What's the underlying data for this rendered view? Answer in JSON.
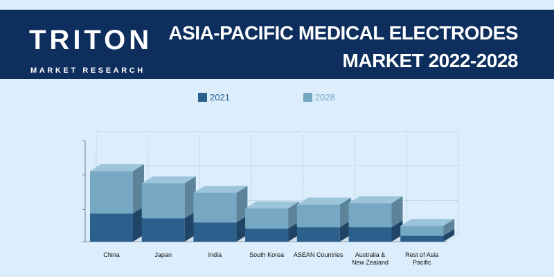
{
  "header": {
    "logo_main": "TRITON",
    "logo_sub": "MARKET RESEARCH",
    "title_line1": "ASIA-PACIFIC MEDICAL ELECTRODES",
    "title_line2": "MARKET 2022-2028"
  },
  "colors": {
    "header_bg": "#0e2f5e",
    "page_bg": "#dceefb",
    "series_2021": "#2b5f8c",
    "series_2028": "#76a8c4",
    "logo_accent": "#1f74d4"
  },
  "chart_data": {
    "type": "bar",
    "stacked": true,
    "three_d": true,
    "legend_position": "top",
    "grid": true,
    "ylim": [
      0,
      3
    ],
    "categories": [
      "China",
      "Japan",
      "India",
      "South Korea",
      "ASEAN Countries",
      "Australia & New Zealand",
      "Rest of Asia Pacific"
    ],
    "series": [
      {
        "name": "2021",
        "values": [
          0.82,
          0.68,
          0.56,
          0.38,
          0.42,
          0.42,
          0.17
        ]
      },
      {
        "name": "2028",
        "values": [
          1.23,
          1.02,
          0.86,
          0.59,
          0.66,
          0.7,
          0.29
        ]
      }
    ]
  }
}
